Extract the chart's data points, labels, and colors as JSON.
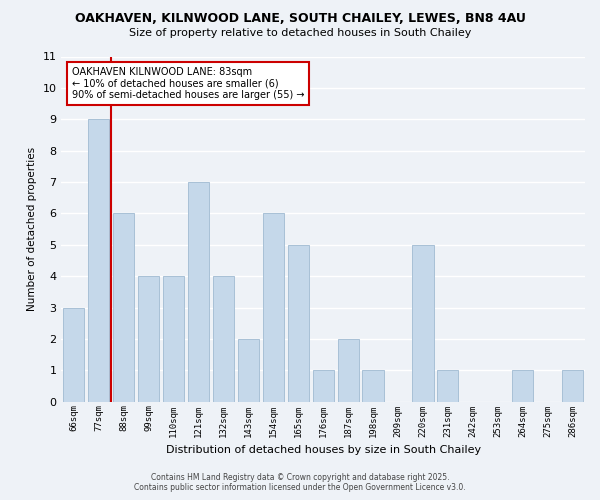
{
  "title": "OAKHAVEN, KILNWOOD LANE, SOUTH CHAILEY, LEWES, BN8 4AU",
  "subtitle": "Size of property relative to detached houses in South Chailey",
  "xlabel": "Distribution of detached houses by size in South Chailey",
  "ylabel": "Number of detached properties",
  "bar_color": "#c5d8ea",
  "bar_edge_color": "#a8c0d6",
  "background_color": "#eef2f7",
  "grid_color": "#ffffff",
  "bin_labels": [
    "66sqm",
    "77sqm",
    "88sqm",
    "99sqm",
    "110sqm",
    "121sqm",
    "132sqm",
    "143sqm",
    "154sqm",
    "165sqm",
    "176sqm",
    "187sqm",
    "198sqm",
    "209sqm",
    "220sqm",
    "231sqm",
    "242sqm",
    "253sqm",
    "264sqm",
    "275sqm",
    "286sqm"
  ],
  "bar_heights": [
    3,
    9,
    6,
    4,
    4,
    7,
    4,
    2,
    6,
    5,
    1,
    2,
    1,
    0,
    5,
    1,
    0,
    0,
    1,
    0,
    1
  ],
  "ylim": [
    0,
    11
  ],
  "yticks": [
    0,
    1,
    2,
    3,
    4,
    5,
    6,
    7,
    8,
    9,
    10,
    11
  ],
  "vline_x": 1.5,
  "vline_color": "#cc0000",
  "annotation_text": "OAKHAVEN KILNWOOD LANE: 83sqm\n← 10% of detached houses are smaller (6)\n90% of semi-detached houses are larger (55) →",
  "annotation_box_color": "white",
  "annotation_box_edge": "#cc0000",
  "footer_line1": "Contains HM Land Registry data © Crown copyright and database right 2025.",
  "footer_line2": "Contains public sector information licensed under the Open Government Licence v3.0."
}
